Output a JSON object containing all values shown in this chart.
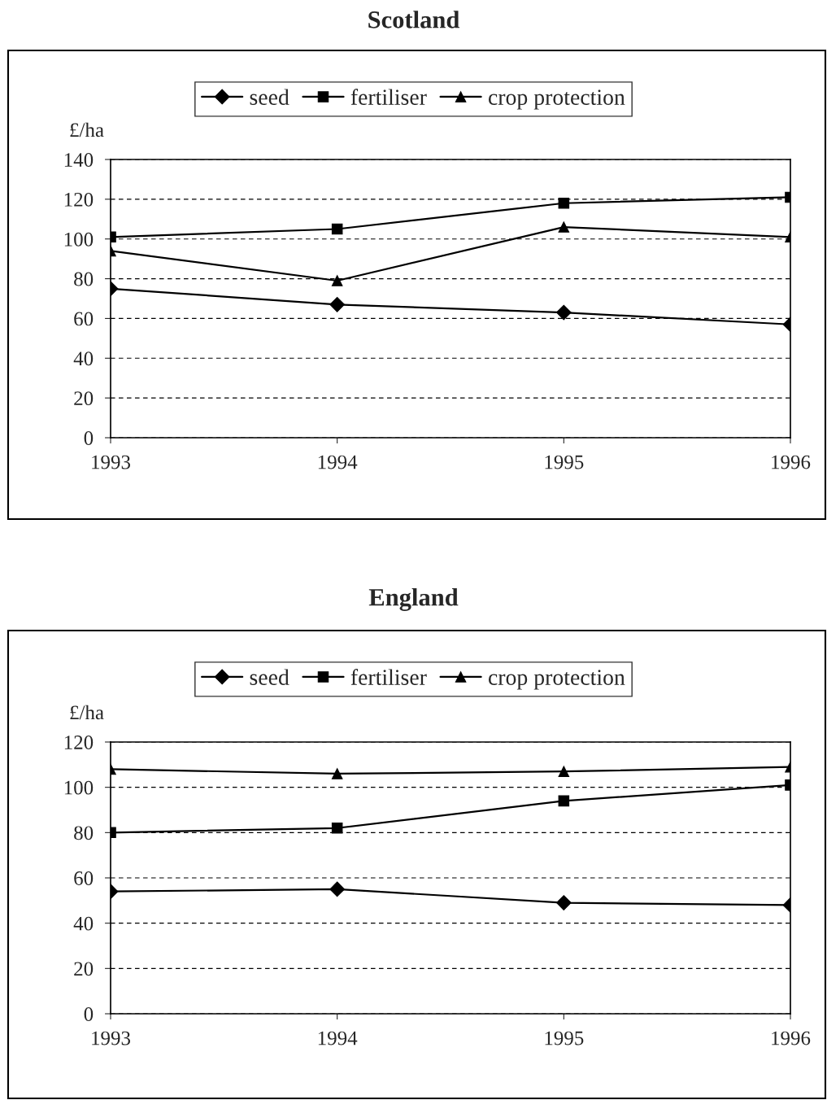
{
  "chart_data": [
    {
      "type": "line",
      "title": "Scotland",
      "ylabel": "£/ha",
      "categories": [
        "1993",
        "1994",
        "1995",
        "1996"
      ],
      "ylim": [
        0,
        140
      ],
      "yticks": [
        0,
        20,
        40,
        60,
        80,
        100,
        120,
        140
      ],
      "grid": "y",
      "legend": "top",
      "line_style": "solid",
      "series": [
        {
          "name": "seed",
          "color": "#000000",
          "marker": "diamond",
          "values": [
            75,
            67,
            63,
            57
          ]
        },
        {
          "name": "fertiliser",
          "color": "#000000",
          "marker": "square",
          "values": [
            101,
            105,
            118,
            121
          ]
        },
        {
          "name": "crop protection",
          "color": "#000000",
          "marker": "triangle",
          "values": [
            94,
            79,
            106,
            101
          ]
        }
      ]
    },
    {
      "type": "line",
      "title": "England",
      "ylabel": "£/ha",
      "categories": [
        "1993",
        "1994",
        "1995",
        "1996"
      ],
      "ylim": [
        0,
        120
      ],
      "yticks": [
        0,
        20,
        40,
        60,
        80,
        100,
        120
      ],
      "grid": "y",
      "legend": "top",
      "line_style": "solid",
      "series": [
        {
          "name": "seed",
          "color": "#000000",
          "marker": "diamond",
          "values": [
            54,
            55,
            49,
            48
          ]
        },
        {
          "name": "fertiliser",
          "color": "#000000",
          "marker": "square",
          "values": [
            80,
            82,
            94,
            101
          ]
        },
        {
          "name": "crop protection",
          "color": "#000000",
          "marker": "triangle",
          "values": [
            108,
            106,
            107,
            109
          ]
        }
      ]
    }
  ]
}
